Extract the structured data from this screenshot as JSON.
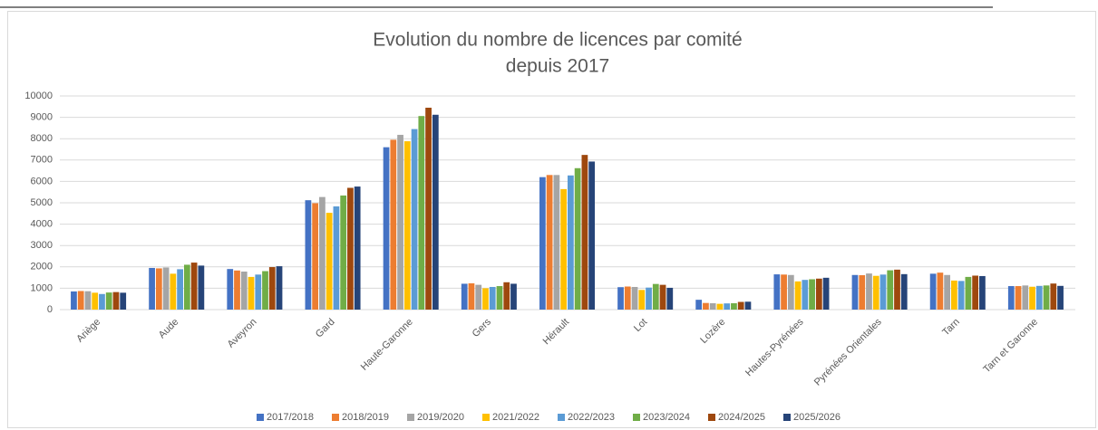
{
  "chart_data": {
    "type": "bar",
    "title": [
      "Evolution du nombre de licences par comité",
      "depuis 2017"
    ],
    "categories": [
      "Ariège",
      "Aude",
      "Aveyron",
      "Gard",
      "Haute-Garonne",
      "Gers",
      "Hérault",
      "Lot",
      "Lozère",
      "Hautes-Pyrénées",
      "Pyrénées Orientales",
      "Tarn",
      "Tarn et Garonne"
    ],
    "series": [
      {
        "name": "2017/2018",
        "color": "#4472c4",
        "values": [
          850,
          1950,
          1900,
          5120,
          7600,
          1210,
          6200,
          1050,
          460,
          1650,
          1620,
          1680,
          1100
        ]
      },
      {
        "name": "2018/2019",
        "color": "#ed7d31",
        "values": [
          870,
          1930,
          1830,
          4980,
          7950,
          1230,
          6300,
          1080,
          310,
          1640,
          1610,
          1730,
          1100
        ]
      },
      {
        "name": "2019/2020",
        "color": "#a5a5a5",
        "values": [
          860,
          1970,
          1780,
          5270,
          8180,
          1160,
          6300,
          1060,
          300,
          1620,
          1690,
          1620,
          1130
        ]
      },
      {
        "name": "2021/2022",
        "color": "#ffc000",
        "values": [
          790,
          1680,
          1530,
          4530,
          7880,
          1000,
          5640,
          920,
          270,
          1320,
          1580,
          1360,
          1070
        ]
      },
      {
        "name": "2022/2023",
        "color": "#5b9bd5",
        "values": [
          730,
          1890,
          1640,
          4830,
          8450,
          1060,
          6280,
          1030,
          290,
          1390,
          1640,
          1340,
          1110
        ]
      },
      {
        "name": "2023/2024",
        "color": "#70ad47",
        "values": [
          800,
          2100,
          1800,
          5340,
          9060,
          1100,
          6620,
          1200,
          300,
          1420,
          1840,
          1530,
          1130
        ]
      },
      {
        "name": "2024/2025",
        "color": "#9e480e",
        "values": [
          820,
          2200,
          1990,
          5700,
          9450,
          1280,
          7240,
          1160,
          360,
          1450,
          1870,
          1590,
          1220
        ]
      },
      {
        "name": "2025/2026",
        "color": "#264478",
        "values": [
          790,
          2060,
          2030,
          5760,
          9120,
          1210,
          6930,
          1020,
          370,
          1490,
          1660,
          1570,
          1110
        ]
      }
    ],
    "ylim": [
      0,
      10000
    ],
    "yticks": [
      0,
      1000,
      2000,
      3000,
      4000,
      5000,
      6000,
      7000,
      8000,
      9000,
      10000
    ],
    "grid": true,
    "legend": "bottom"
  }
}
